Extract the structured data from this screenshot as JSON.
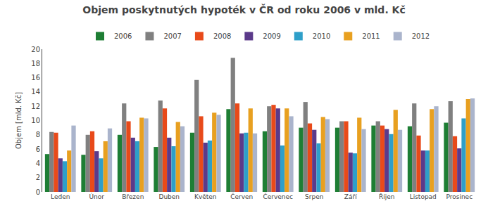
{
  "chart_data": {
    "type": "bar",
    "title": "Objem poskytnutých hypoték v ČR od roku 2006 v mld. Kč",
    "ylabel": "Objem [mld. Kč]",
    "categories": [
      "Leden",
      "Únor",
      "Březen",
      "Duben",
      "Květen",
      "Červen",
      "Červenec",
      "Srpen",
      "Září",
      "Říjen",
      "Listopad",
      "Prosinec"
    ],
    "series": [
      {
        "name": "2006",
        "color": "#1e7e34",
        "values": [
          5.3,
          5.2,
          8.0,
          6.3,
          8.3,
          11.6,
          8.5,
          9.0,
          9.0,
          9.3,
          9.2,
          9.7
        ]
      },
      {
        "name": "2007",
        "color": "#808080",
        "values": [
          8.4,
          8.0,
          12.4,
          12.8,
          15.7,
          18.8,
          12.0,
          12.6,
          9.9,
          9.9,
          12.4,
          12.7
        ]
      },
      {
        "name": "2008",
        "color": "#e84a1a",
        "values": [
          8.3,
          8.5,
          9.9,
          11.7,
          10.6,
          12.4,
          12.2,
          9.6,
          9.9,
          9.3,
          7.9,
          7.8
        ]
      },
      {
        "name": "2009",
        "color": "#5b3a8a",
        "values": [
          4.7,
          5.7,
          7.6,
          7.6,
          6.9,
          8.2,
          11.7,
          8.7,
          5.5,
          8.8,
          5.8,
          6.1
        ]
      },
      {
        "name": "2010",
        "color": "#2e9fc9",
        "values": [
          4.3,
          4.7,
          7.1,
          6.4,
          7.2,
          8.3,
          6.5,
          6.8,
          5.4,
          8.1,
          5.8,
          10.3
        ]
      },
      {
        "name": "2011",
        "color": "#e8a020",
        "values": [
          5.8,
          7.1,
          10.4,
          9.8,
          11.1,
          11.7,
          11.7,
          10.5,
          10.4,
          11.5,
          11.6,
          13.0
        ]
      },
      {
        "name": "2012",
        "color": "#aab4cc",
        "values": [
          9.3,
          8.9,
          10.3,
          9.2,
          10.8,
          8.2,
          10.6,
          10.2,
          8.8,
          8.7,
          12.0,
          13.1
        ]
      }
    ],
    "ylim": [
      0,
      20
    ],
    "yticks": [
      0,
      2,
      4,
      6,
      8,
      10,
      12,
      14,
      16,
      18,
      20
    ],
    "grid": false,
    "legend": "top"
  }
}
